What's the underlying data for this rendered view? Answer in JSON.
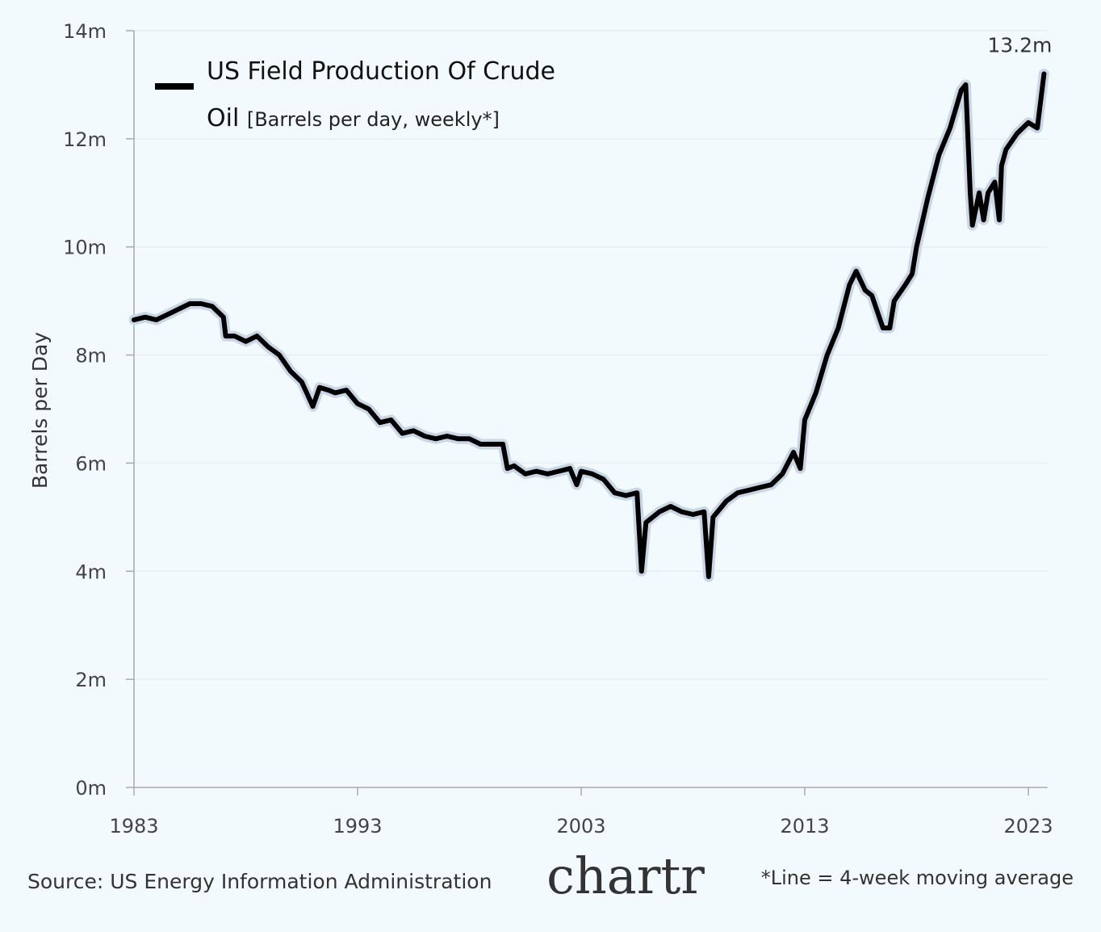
{
  "chart_data": {
    "type": "line",
    "subtitle": "[Barrels per day, weekly*]",
    "y_label": "Barrels per Day",
    "annotation": "13.2m",
    "source": "Source: US Energy Information Administration",
    "logo": "chartr",
    "footnote": "*Line = 4-week moving average",
    "xlim": [
      1983,
      2023.85
    ],
    "xticks": [
      1983,
      1993,
      2003,
      2013,
      2023
    ],
    "ylim": [
      0,
      14
    ],
    "yticks": [
      {
        "value": 0,
        "label": "0m"
      },
      {
        "value": 2,
        "label": "2m"
      },
      {
        "value": 4,
        "label": "4m"
      },
      {
        "value": 6,
        "label": "6m"
      },
      {
        "value": 8,
        "label": "8m"
      },
      {
        "value": 10,
        "label": "10m"
      },
      {
        "value": 12,
        "label": "12m"
      },
      {
        "value": 14,
        "label": "14m"
      }
    ],
    "grid": true,
    "x": [
      1983.0,
      1983.5,
      1984.0,
      1984.5,
      1985.0,
      1985.5,
      1986.0,
      1986.5,
      1987.0,
      1987.1,
      1987.5,
      1988.0,
      1988.5,
      1989.0,
      1989.5,
      1990.0,
      1990.5,
      1991.0,
      1991.3,
      1991.7,
      1992.0,
      1992.5,
      1993.0,
      1993.5,
      1994.0,
      1994.5,
      1995.0,
      1995.5,
      1996.0,
      1996.5,
      1997.0,
      1997.5,
      1998.0,
      1998.5,
      1999.0,
      1999.5,
      1999.7,
      2000.0,
      2000.5,
      2001.0,
      2001.5,
      2002.0,
      2002.5,
      2002.8,
      2003.0,
      2003.5,
      2004.0,
      2004.5,
      2005.0,
      2005.5,
      2005.7,
      2005.9,
      2006.5,
      2007.0,
      2007.5,
      2008.0,
      2008.5,
      2008.7,
      2008.9,
      2009.5,
      2010.0,
      2010.5,
      2011.0,
      2011.5,
      2012.0,
      2012.5,
      2012.8,
      2013.0,
      2013.5,
      2014.0,
      2014.5,
      2015.0,
      2015.3,
      2015.7,
      2016.0,
      2016.5,
      2016.8,
      2017.0,
      2017.5,
      2017.8,
      2018.0,
      2018.5,
      2019.0,
      2019.5,
      2020.0,
      2020.2,
      2020.4,
      2020.5,
      2020.8,
      2021.0,
      2021.2,
      2021.5,
      2021.7,
      2021.8,
      2022.0,
      2022.5,
      2023.0,
      2023.4,
      2023.7
    ],
    "series": [
      {
        "name": "US Field Production Of Crude Oil",
        "color": "#000000",
        "values": [
          8.65,
          8.7,
          8.65,
          8.75,
          8.85,
          8.95,
          8.95,
          8.9,
          8.7,
          8.35,
          8.35,
          8.25,
          8.35,
          8.15,
          8.0,
          7.7,
          7.5,
          7.05,
          7.4,
          7.35,
          7.3,
          7.35,
          7.1,
          7.0,
          6.75,
          6.8,
          6.55,
          6.6,
          6.5,
          6.45,
          6.5,
          6.45,
          6.45,
          6.35,
          6.35,
          6.35,
          5.9,
          5.95,
          5.8,
          5.85,
          5.8,
          5.85,
          5.9,
          5.6,
          5.85,
          5.8,
          5.7,
          5.45,
          5.4,
          5.45,
          4.0,
          4.9,
          5.1,
          5.2,
          5.1,
          5.05,
          5.1,
          3.9,
          5.0,
          5.3,
          5.45,
          5.5,
          5.55,
          5.6,
          5.8,
          6.2,
          5.9,
          6.8,
          7.3,
          8.0,
          8.5,
          9.3,
          9.55,
          9.2,
          9.1,
          8.5,
          8.5,
          9.0,
          9.3,
          9.5,
          10.0,
          10.9,
          11.7,
          12.2,
          12.9,
          13.0,
          11.0,
          10.4,
          11.0,
          10.5,
          11.0,
          11.2,
          10.5,
          11.5,
          11.8,
          12.1,
          12.3,
          12.2,
          13.2
        ]
      }
    ]
  }
}
